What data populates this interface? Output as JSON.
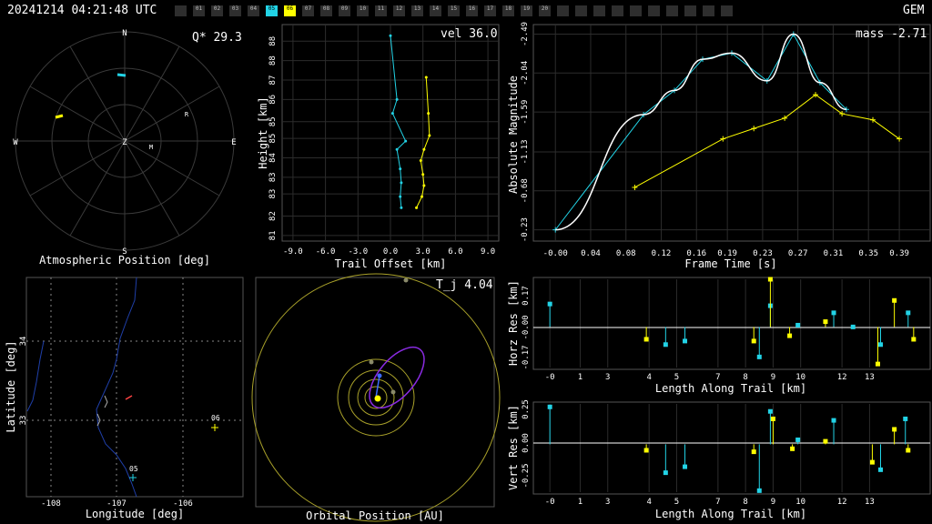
{
  "header": {
    "timestamp": "20241214 04:21:48 UTC",
    "network": "GEM",
    "cameras": [
      "",
      "01",
      "02",
      "03",
      "04",
      "05",
      "06",
      "07",
      "08",
      "09",
      "10",
      "11",
      "12",
      "13",
      "14",
      "15",
      "16",
      "17",
      "18",
      "19",
      "20",
      "",
      "",
      "",
      "",
      "",
      "",
      "",
      "",
      "",
      ""
    ],
    "active_cameras": {
      "05": "#22d3e6",
      "06": "#ffff00"
    }
  },
  "colors": {
    "cyan": "#22d3e6",
    "yellow": "#ffff00",
    "white": "#ffffff",
    "grid": "#3a3a3a",
    "purple": "#8a2be2"
  },
  "atmos": {
    "title": "Atmospheric Position [deg]",
    "q_label": "Q* 29.3",
    "dirs": {
      "n": "N",
      "s": "S",
      "e": "E",
      "w": "W",
      "z": "Z"
    },
    "markers": {
      "r": "R",
      "m": "M"
    }
  },
  "height": {
    "vel_label": "vel 36.0",
    "xlabel": "Trail Offset [km]",
    "ylabel": "Height [km]",
    "xticks": [
      "-9.0",
      "-6.0",
      "-3.0",
      "0.0",
      "3.0",
      "6.0",
      "9.0"
    ],
    "yticks": [
      "81",
      "82",
      "83",
      "83",
      "84",
      "85",
      "85",
      "86",
      "87",
      "88",
      "88"
    ]
  },
  "mag": {
    "mass_label": "mass -2.71",
    "xlabel": "Frame Time [s]",
    "ylabel": "Absolute Magnitude",
    "xticks": [
      "-0.00",
      "0.04",
      "0.08",
      "0.12",
      "0.16",
      "0.19",
      "0.23",
      "0.27",
      "0.31",
      "0.35",
      "0.39"
    ],
    "yticks": [
      "-0.23",
      "-0.68",
      "-1.13",
      "-1.59",
      "-2.04",
      "-2.49"
    ]
  },
  "map": {
    "xlabel": "Longitude [deg]",
    "ylabel": "Latitude [deg]",
    "xticks": [
      "-108",
      "-107",
      "-106"
    ],
    "yticks": [
      "33",
      "34"
    ],
    "station_05": "05",
    "station_06": "06"
  },
  "orbit": {
    "tj_label": "T_j 4.04",
    "xlabel": "Orbital Position [AU]"
  },
  "hres": {
    "ylabel": "Horz Res [km]",
    "xlabel": "Length Along Trail [km]",
    "yticks": [
      "0.17",
      "-0.00",
      "-0.17"
    ],
    "yticks2": [
      "0.17",
      "-0.17"
    ],
    "xticks": [
      "-0",
      "1",
      "3",
      "4",
      "5",
      "7",
      "8",
      "9",
      "10",
      "12",
      "13"
    ]
  },
  "vres": {
    "ylabel": "Vert Res [km]",
    "xlabel": "Length Along Trail [km]",
    "yticks": [
      "0.25",
      "0.00",
      "-0.25"
    ],
    "xticks": [
      "-0",
      "1",
      "3",
      "4",
      "5",
      "7",
      "8",
      "9",
      "10",
      "12",
      "13"
    ]
  },
  "chart_data": [
    {
      "type": "scatter",
      "title": "Atmospheric Position [deg]",
      "note": "polar sky plot"
    },
    {
      "type": "line",
      "xlabel": "Trail Offset [km]",
      "ylabel": "Height [km]",
      "series": [
        {
          "x": [
            0.0,
            0.6,
            0.2,
            1.4,
            0.6,
            0.9,
            1.0,
            0.9,
            1.0
          ],
          "y": [
            88.4,
            86.1,
            85.6,
            84.6,
            84.3,
            83.6,
            83.1,
            82.6,
            82.2
          ]
        },
        {
          "x": [
            3.3,
            3.5,
            3.6,
            3.1,
            2.8,
            3.0,
            3.1,
            2.9,
            2.4
          ],
          "y": [
            86.9,
            85.6,
            84.8,
            84.3,
            83.9,
            83.4,
            83.0,
            82.6,
            82.2
          ]
        }
      ]
    },
    {
      "type": "line",
      "xlabel": "Frame Time [s]",
      "ylabel": "Absolute Magnitude",
      "ylim": [
        -2.6,
        -0.1
      ],
      "series": [
        {
          "x": [
            0.0,
            0.1,
            0.135,
            0.167,
            0.2,
            0.24,
            0.27,
            0.3,
            0.33
          ],
          "y": [
            -0.23,
            -1.56,
            -1.84,
            -2.2,
            -2.27,
            -1.95,
            -2.49,
            -1.93,
            -1.62
          ]
        },
        {
          "x": [
            0.09,
            0.19,
            0.225,
            0.26,
            0.295,
            0.325,
            0.36,
            0.39
          ],
          "y": [
            -0.72,
            -1.28,
            -1.4,
            -1.52,
            -1.79,
            -1.57,
            -1.5,
            -1.28
          ]
        }
      ]
    },
    {
      "type": "line",
      "title": "Longitude [deg]",
      "note": "map with station 05 and 06"
    },
    {
      "type": "scatter",
      "title": "Orbital Position [AU]",
      "note": "orbit plot"
    },
    {
      "type": "scatter",
      "ylabel": "Horz Res [km]",
      "xlabel": "Length Along Trail [km]",
      "series": [
        {
          "x": [
            0.0,
            4.2,
            4.9,
            7.6,
            8.0,
            9.0,
            10.3,
            11.0,
            12.0,
            13.0
          ],
          "y": [
            0.13,
            -0.1,
            -0.08,
            -0.17,
            0.12,
            0.01,
            0.08,
            0.0,
            -0.1,
            0.08
          ]
        },
        {
          "x": [
            3.5,
            7.4,
            8.0,
            8.7,
            10.0,
            11.9,
            12.5,
            13.2
          ],
          "y": [
            -0.07,
            -0.08,
            0.27,
            -0.05,
            0.03,
            -0.21,
            0.15,
            -0.07
          ]
        }
      ]
    },
    {
      "type": "scatter",
      "ylabel": "Vert Res [km]",
      "xlabel": "Length Along Trail [km]",
      "series": [
        {
          "x": [
            0.0,
            4.2,
            4.9,
            7.6,
            8.0,
            9.0,
            10.3,
            12.0,
            12.9
          ],
          "y": [
            0.25,
            -0.19,
            -0.15,
            -0.31,
            0.22,
            0.03,
            0.16,
            -0.17,
            0.17
          ]
        },
        {
          "x": [
            3.5,
            7.4,
            8.1,
            8.8,
            10.0,
            11.7,
            12.5,
            13.0
          ],
          "y": [
            -0.04,
            -0.05,
            0.17,
            -0.03,
            0.02,
            -0.12,
            0.1,
            -0.04
          ]
        }
      ]
    }
  ]
}
